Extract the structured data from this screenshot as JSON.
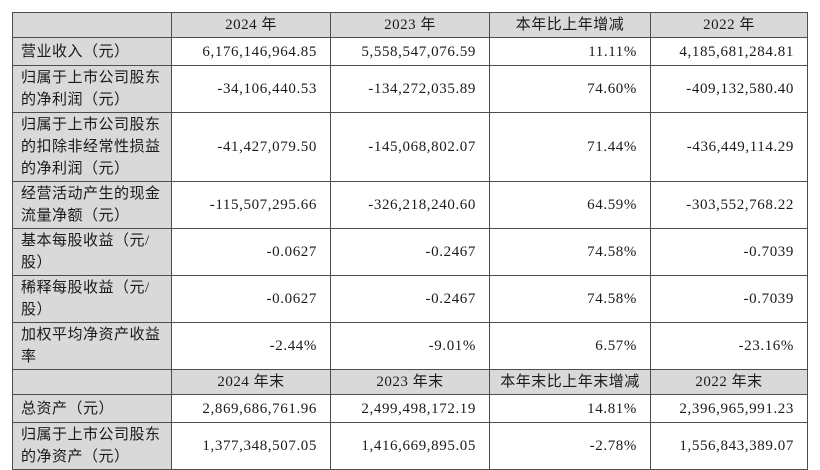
{
  "colors": {
    "header_bg": "#d9d9d9",
    "label_bg": "#d9d9d9",
    "border": "#4d4d4d",
    "text": "#1a1a1a",
    "page_bg": "#ffffff"
  },
  "table": {
    "sections": [
      {
        "header": [
          "",
          "2024 年",
          "2023 年",
          "本年比上年增减",
          "2022 年"
        ],
        "rows": [
          {
            "label": "营业收入（元）",
            "values": [
              "6,176,146,964.85",
              "5,558,547,076.59",
              "11.11%",
              "4,185,681,284.81"
            ]
          },
          {
            "label": "归属于上市公司股东的净利润（元）",
            "values": [
              "-34,106,440.53",
              "-134,272,035.89",
              "74.60%",
              "-409,132,580.40"
            ]
          },
          {
            "label": "归属于上市公司股东的扣除非经常性损益的净利润（元）",
            "values": [
              "-41,427,079.50",
              "-145,068,802.07",
              "71.44%",
              "-436,449,114.29"
            ]
          },
          {
            "label": "经营活动产生的现金流量净额（元）",
            "values": [
              "-115,507,295.66",
              "-326,218,240.60",
              "64.59%",
              "-303,552,768.22"
            ]
          },
          {
            "label": "基本每股收益（元/股）",
            "values": [
              "-0.0627",
              "-0.2467",
              "74.58%",
              "-0.7039"
            ]
          },
          {
            "label": "稀释每股收益（元/股）",
            "values": [
              "-0.0627",
              "-0.2467",
              "74.58%",
              "-0.7039"
            ]
          },
          {
            "label": "加权平均净资产收益率",
            "values": [
              "-2.44%",
              "-9.01%",
              "6.57%",
              "-23.16%"
            ]
          }
        ]
      },
      {
        "header": [
          "",
          "2024 年末",
          "2023 年末",
          "本年末比上年末增减",
          "2022 年末"
        ],
        "rows": [
          {
            "label": "总资产（元）",
            "values": [
              "2,869,686,761.96",
              "2,499,498,172.19",
              "14.81%",
              "2,396,965,991.23"
            ]
          },
          {
            "label": "归属于上市公司股东的净资产（元）",
            "values": [
              "1,377,348,507.05",
              "1,416,669,895.05",
              "-2.78%",
              "1,556,843,389.07"
            ]
          }
        ]
      }
    ]
  }
}
